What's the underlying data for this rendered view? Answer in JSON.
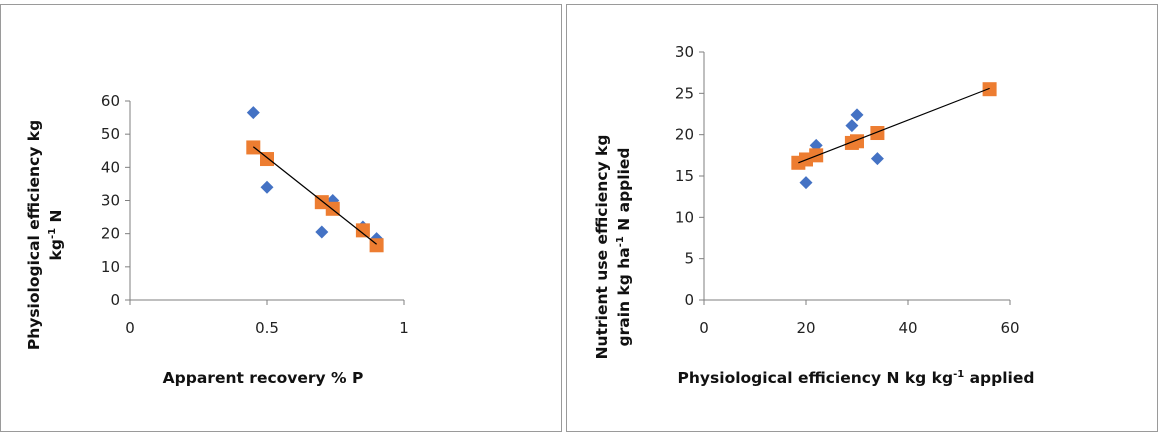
{
  "chart_data": [
    {
      "type": "scatter",
      "title": "",
      "xlabel": "Apparent recovery % P",
      "ylabel_lines": [
        {
          "text": "Physiological efficiency kg",
          "sup": ""
        },
        {
          "text": "kg",
          "sup": "-1",
          "after": " N"
        }
      ],
      "xlim": [
        0,
        1
      ],
      "ylim": [
        0,
        60
      ],
      "xticks": [
        0,
        0.5,
        1
      ],
      "xtick_labels": [
        "0",
        "0.5",
        "1"
      ],
      "yticks": [
        0,
        10,
        20,
        30,
        40,
        50,
        60
      ],
      "ytick_labels": [
        "0",
        "10",
        "20",
        "30",
        "40",
        "50",
        "60"
      ],
      "grid": false,
      "legend": "none",
      "series": [
        {
          "marker": "diamond",
          "color": "#4472C4",
          "x": [
            0.45,
            0.5,
            0.7,
            0.74,
            0.85,
            0.9
          ],
          "y": [
            56.5,
            34,
            20.5,
            30,
            22,
            18.5
          ]
        },
        {
          "marker": "square",
          "color": "#ED7D31",
          "x": [
            0.45,
            0.5,
            0.7,
            0.74,
            0.85,
            0.9
          ],
          "y": [
            46,
            42.5,
            29.5,
            27.5,
            21,
            16.5
          ]
        }
      ],
      "trendline": {
        "color": "#000000",
        "x": [
          0.45,
          0.9
        ],
        "y": [
          46.2,
          16.8
        ]
      }
    },
    {
      "type": "scatter",
      "title": "",
      "xlabel": "Physiological efficiency N kg kg",
      "xlabel_sup": "-1",
      "xlabel_after": " applied",
      "ylabel_lines": [
        {
          "text": "Nutrient use efficiency kg",
          "sup": ""
        },
        {
          "text": "grain kg ha",
          "sup": "-1",
          "after": " N applied"
        }
      ],
      "xlim": [
        0,
        60
      ],
      "ylim": [
        0,
        30
      ],
      "xticks": [
        0,
        20,
        40,
        60
      ],
      "xtick_labels": [
        "0",
        "20",
        "40",
        "60"
      ],
      "yticks": [
        0,
        5,
        10,
        15,
        20,
        25,
        30
      ],
      "ytick_labels": [
        "0",
        "5",
        "10",
        "15",
        "20",
        "25",
        "30"
      ],
      "grid": false,
      "legend": "none",
      "series": [
        {
          "marker": "diamond",
          "color": "#4472C4",
          "x": [
            20,
            22,
            29,
            30,
            34,
            56
          ],
          "y": [
            14.2,
            18.7,
            21.1,
            22.4,
            17.1,
            25.5
          ]
        },
        {
          "marker": "square",
          "color": "#ED7D31",
          "x": [
            18.5,
            20,
            22,
            29,
            30,
            34,
            56
          ],
          "y": [
            16.6,
            17,
            17.5,
            19,
            19.2,
            20.2,
            25.5
          ]
        }
      ],
      "trendline": {
        "color": "#000000",
        "x": [
          18.5,
          56
        ],
        "y": [
          16.6,
          25.6
        ]
      }
    }
  ]
}
